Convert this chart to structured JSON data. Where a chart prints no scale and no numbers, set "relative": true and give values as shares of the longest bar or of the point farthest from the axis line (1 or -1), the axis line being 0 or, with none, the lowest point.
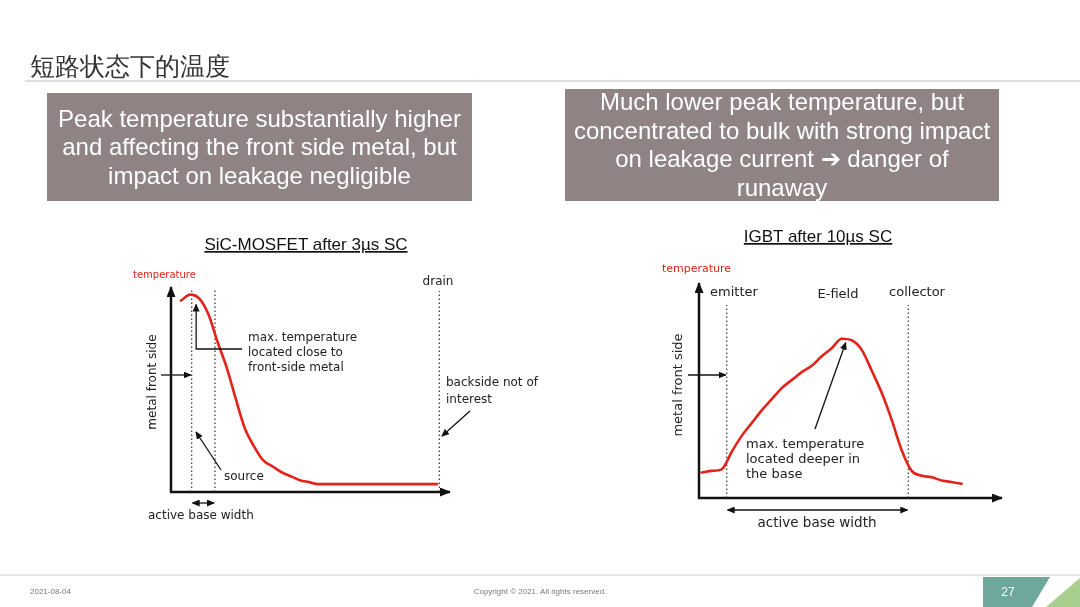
{
  "chart_data": [
    {
      "type": "other",
      "title": "短路状态下的温度",
      "annotations": [
        "2021-08-04",
        "Copyright © 2021. All rights reserved.",
        "27"
      ]
    },
    {
      "type": "line",
      "title": "SiC-MOSFET after 3µs SC",
      "subtitle": "Peak temperature substantially higher and affecting the front side metal, but impact on leakage negligible",
      "ylabel": "temperature",
      "xlabel": "active base width",
      "relative": true,
      "categories": [
        null,
        null,
        null,
        null,
        null,
        null,
        null,
        null,
        null,
        null,
        null,
        null,
        null,
        null,
        null,
        null,
        null,
        null,
        null,
        null,
        null,
        null,
        null,
        null,
        null,
        null,
        null,
        null,
        null
      ],
      "series": [
        {
          "color": "#e2231a",
          "values": [
            0.97,
            1,
            0.98,
            0.9,
            0.76,
            0.63,
            0.47,
            0.32,
            0.23,
            0.16,
            0.13,
            0.1,
            0.08,
            0.06,
            0.05,
            0.04,
            0.04,
            0.04,
            0.04,
            0.04,
            0.04,
            0.04,
            0.04,
            0.04,
            0.04,
            0.04,
            0.04,
            0.04,
            0.04
          ]
        }
      ],
      "annotations": [
        "drain",
        "max. temperature located close to front-side metal",
        "source",
        "backside not of interest",
        "metal front side"
      ]
    },
    {
      "type": "line",
      "title": "IGBT after 10µs SC",
      "subtitle": "Much lower peak temperature, but concentrated to bulk with strong impact on leakage current ➔ danger of runaway",
      "ylabel": "temperature",
      "xlabel": "active base width",
      "relative": true,
      "categories": [
        null,
        null,
        null,
        null,
        null,
        null,
        null,
        null,
        null,
        null,
        null,
        null,
        null,
        null,
        null,
        null,
        null,
        null,
        null,
        null,
        null,
        null,
        null,
        null,
        null,
        null,
        null
      ],
      "series": [
        {
          "color": "#e2231a",
          "values": [
            0.16,
            0.17,
            0.18,
            0.29,
            0.39,
            0.47,
            0.55,
            0.62,
            0.69,
            0.74,
            0.79,
            0.83,
            0.89,
            0.94,
            1,
            0.99,
            0.93,
            0.8,
            0.66,
            0.49,
            0.3,
            0.17,
            0.14,
            0.13,
            0.11,
            0.1,
            0.09
          ]
        }
      ],
      "annotations": [
        "emitter",
        "E-field",
        "collector",
        "max. temperature located deeper in the base",
        "metal front side"
      ]
    }
  ]
}
